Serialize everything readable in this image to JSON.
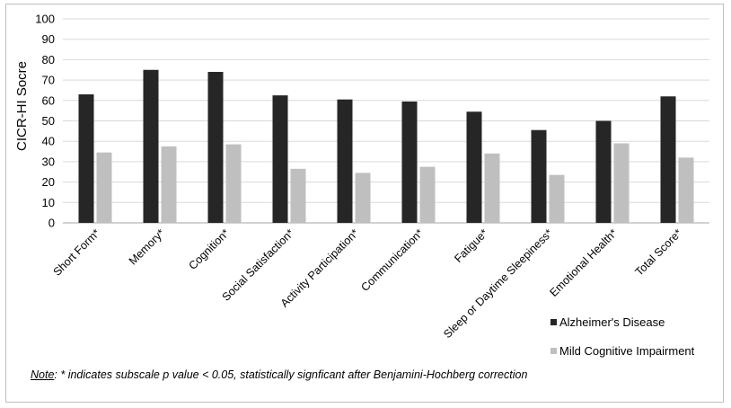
{
  "chart_data": {
    "type": "bar",
    "title": "",
    "ylabel": "CICR-HI Socre",
    "xlabel": "",
    "ylim": [
      0,
      100
    ],
    "yticks": [
      0,
      10,
      20,
      30,
      40,
      50,
      60,
      70,
      80,
      90,
      100
    ],
    "grid": true,
    "legend_position": "bottom-right",
    "categories": [
      "Short Form*",
      "Memory*",
      "Cognition*",
      "Social Satisfaction*",
      "Activity Participation*",
      "Communication*",
      "Fatigue*",
      "Sleep or Daytime Sleepiness*",
      "Emotional Health*",
      "Total Score*"
    ],
    "series": [
      {
        "name": "Alzheimer's Disease",
        "color": "#262626",
        "values": [
          63,
          75,
          74,
          62.5,
          60.5,
          59.5,
          54.5,
          45.5,
          50,
          62
        ]
      },
      {
        "name": "Mild Cognitive Impairment",
        "color": "#bfbfbf",
        "values": [
          34.5,
          37.5,
          38.5,
          26.5,
          24.5,
          27.5,
          34,
          23.5,
          39,
          32
        ]
      }
    ]
  },
  "note": {
    "lead": "Note",
    "text": ": * indicates subscale p value < 0.05, statistically signficant after Benjamini-Hochberg correction"
  }
}
